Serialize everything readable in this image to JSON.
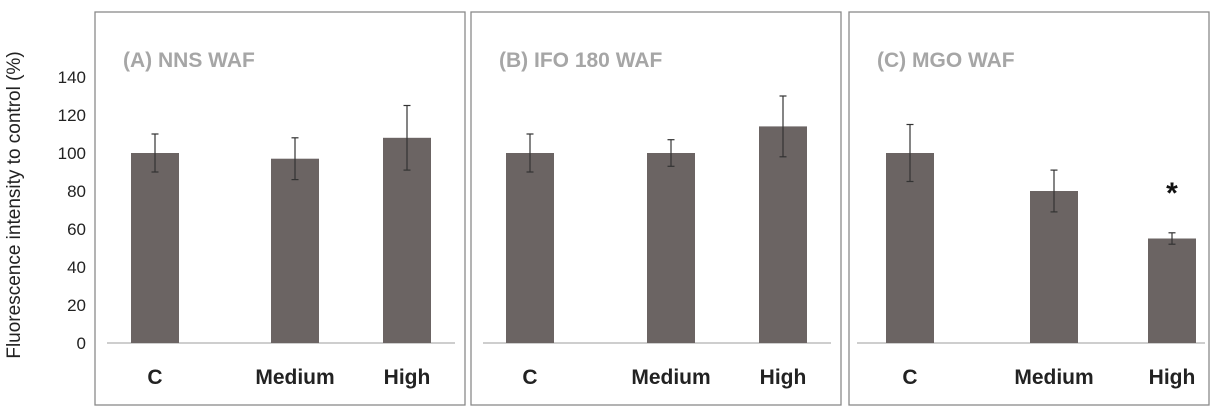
{
  "ylabel": "Fluorescence intensity to control (%)",
  "colors": {
    "bar": "#6b6463",
    "frame": "#8a8a8a",
    "axis": "#b0b0b0",
    "title": "#a6a6a6",
    "text": "#222222"
  },
  "chart_data": [
    {
      "type": "bar",
      "title": "(A) NNS WAF",
      "categories": [
        "C",
        "Medium",
        "High"
      ],
      "values": [
        100,
        97,
        108
      ],
      "errors": [
        10,
        11,
        17
      ],
      "annotations": [
        "",
        "",
        ""
      ],
      "ylim": [
        0,
        140
      ],
      "yticks": [
        0,
        20,
        40,
        60,
        80,
        100,
        120,
        140
      ],
      "show_yticks": true
    },
    {
      "type": "bar",
      "title": "(B) IFO 180 WAF",
      "categories": [
        "C",
        "Medium",
        "High"
      ],
      "values": [
        100,
        100,
        114
      ],
      "errors": [
        10,
        7,
        16
      ],
      "annotations": [
        "",
        "",
        ""
      ],
      "ylim": [
        0,
        140
      ],
      "show_yticks": false
    },
    {
      "type": "bar",
      "title": "(C) MGO WAF",
      "categories": [
        "C",
        "Medium",
        "High"
      ],
      "values": [
        100,
        80,
        55
      ],
      "errors": [
        15,
        11,
        3
      ],
      "annotations": [
        "",
        "",
        "*"
      ],
      "ylim": [
        0,
        140
      ],
      "show_yticks": false
    }
  ]
}
